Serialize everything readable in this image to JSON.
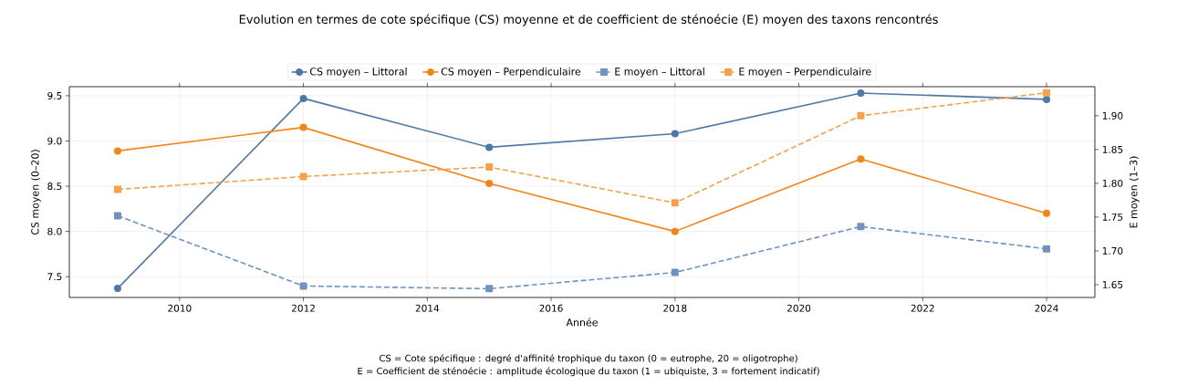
{
  "chart_data": {
    "type": "line",
    "title": "Evolution en termes de cote spécifique (CS) moyenne et de coefficient de sténoécie (E) moyen des taxons rencontrés",
    "xlabel": "Année",
    "ylabel": "CS moyen (0–20)",
    "y2label": "E moyen (1–3)",
    "x": [
      2009,
      2012,
      2015,
      2018,
      2021,
      2024
    ],
    "series": [
      {
        "name": "CS moyen – Littoral",
        "color": "#4e79a7",
        "values": [
          7.37,
          9.47,
          8.93,
          9.08,
          9.53,
          9.46
        ],
        "marker": "circle",
        "line_style": "solid"
      },
      {
        "name": "CS moyen – Perpendiculaire",
        "color": "#f58518",
        "values": [
          8.89,
          9.15,
          8.53,
          8.0,
          8.8,
          8.2
        ],
        "marker": "circle",
        "line_style": "solid"
      },
      {
        "name": "E moyen – Littoral",
        "color": "#6f93c0",
        "values": [
          1.752,
          1.648,
          1.644,
          1.668,
          1.736,
          1.703
        ],
        "marker": "square",
        "line_style": "dashed",
        "axis": "y2"
      },
      {
        "name": "E moyen – Perpendiculaire",
        "color": "#f7a14b",
        "values": [
          1.791,
          1.81,
          1.824,
          1.771,
          1.9,
          1.934
        ],
        "marker": "square",
        "line_style": "dashed",
        "axis": "y2"
      }
    ],
    "xlim": [
      2008.22,
      2024.78
    ],
    "xticks": [
      2010,
      2012,
      2014,
      2016,
      2018,
      2020,
      2022,
      2024
    ],
    "ylim": [
      7.27,
      9.6
    ],
    "yticks": [
      7.5,
      {
        "value": 8,
        "label": "8.0"
      },
      8.5,
      {
        "value": 9,
        "label": "9.0"
      },
      9.5
    ],
    "y2lim": [
      1.631,
      1.943
    ],
    "y2ticks": [
      1.65,
      {
        "value": 1.7,
        "label": "1.70"
      },
      1.75,
      {
        "value": 1.8,
        "label": "1.80"
      },
      1.85,
      {
        "value": 1.9,
        "label": "1.90"
      }
    ],
    "grid": true,
    "legend": "top",
    "annotations": [
      "CS = Cote spécifique : degré d'affinité trophique du taxon (0 = eutrophe, 20 = oligotrophe)",
      "E = Coefficient de sténoécie : amplitude écologique du taxon (1 = ubiquiste, 3 = fortement indicatif)"
    ]
  }
}
